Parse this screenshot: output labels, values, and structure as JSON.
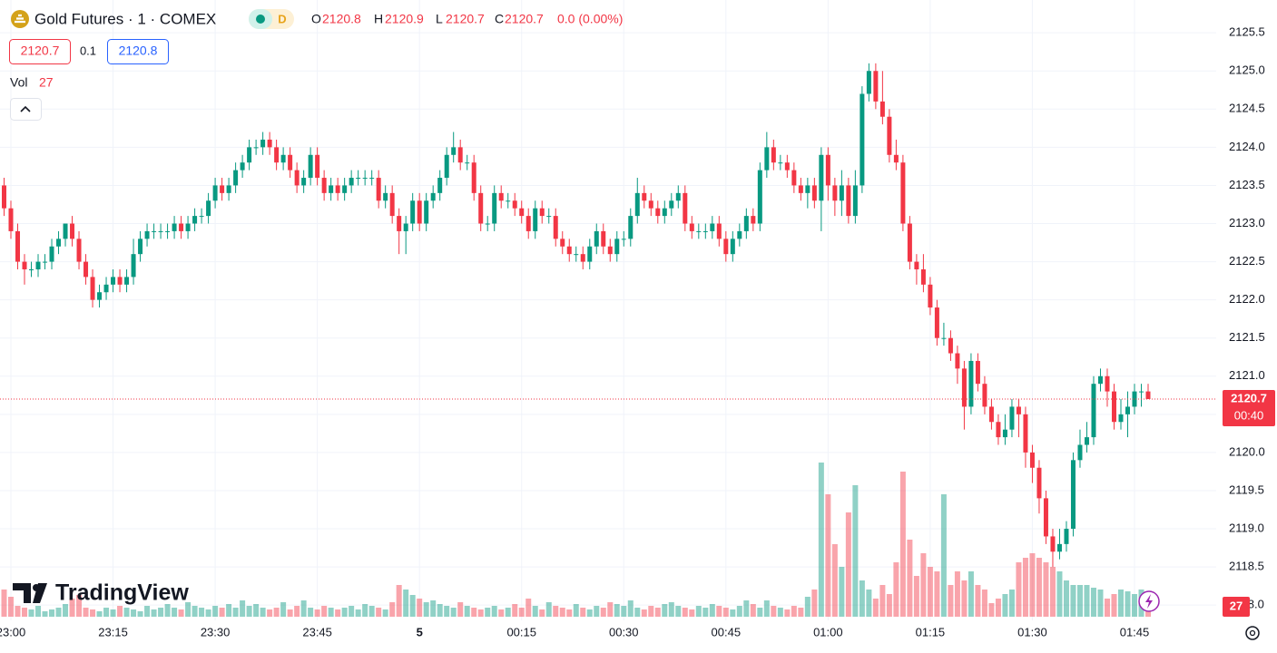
{
  "header": {
    "title": "Gold Futures · 1 · COMEX",
    "interval_badge": "D",
    "ohlc_labels": [
      "O",
      "H",
      "L",
      "C"
    ],
    "change": "0.0 (0.00%)",
    "bid": 2120.7,
    "spread": 0.1,
    "ask": 2120.8,
    "vol_label": "Vol",
    "logo": "TradingView",
    "countdown": "00:40"
  },
  "chart_data": {
    "type": "candlestick",
    "up_color": "#089981",
    "down_color": "#f23645",
    "grid": true,
    "ylim": [
      2117.8,
      2125.93
    ],
    "yticks": [
      {
        "value": 2118.0,
        "label": "2118.0"
      },
      2118.5,
      {
        "value": 2119.0,
        "label": "2119.0"
      },
      2119.5,
      {
        "value": 2120.0,
        "label": "2120.0"
      },
      2120.5,
      {
        "value": 2121.0,
        "label": "2121.0"
      },
      2121.5,
      {
        "value": 2122.0,
        "label": "2122.0"
      },
      2122.5,
      {
        "value": 2123.0,
        "label": "2123.0"
      },
      2123.5,
      {
        "value": 2124.0,
        "label": "2124.0"
      },
      2124.5,
      {
        "value": 2125.0,
        "label": "2125.0"
      },
      2125.5
    ],
    "xticks": [
      {
        "value": 1,
        "label": "23:00"
      },
      {
        "value": 16,
        "label": "23:15"
      },
      {
        "value": 31,
        "label": "23:30"
      },
      {
        "value": 46,
        "label": "23:45"
      },
      {
        "value": 61,
        "label": "5"
      },
      {
        "value": 76,
        "label": "00:15"
      },
      {
        "value": 91,
        "label": "00:30"
      },
      {
        "value": 106,
        "label": "00:45"
      },
      {
        "value": 121,
        "label": "01:00"
      },
      {
        "value": 136,
        "label": "01:15"
      },
      {
        "value": 151,
        "label": "01:30"
      },
      {
        "value": 166,
        "label": "01:45"
      }
    ],
    "ohlc": [
      [
        2123.5,
        2123.6,
        2123.1,
        2123.2
      ],
      [
        2123.2,
        2123.3,
        2122.8,
        2122.9
      ],
      [
        2122.9,
        2123.0,
        2122.4,
        2122.5
      ],
      [
        2122.5,
        2122.6,
        2122.2,
        2122.4
      ],
      [
        2122.4,
        2122.5,
        2122.3,
        2122.4
      ],
      [
        2122.4,
        2122.6,
        2122.3,
        2122.5
      ],
      [
        2122.5,
        2122.6,
        2122.4,
        2122.5
      ],
      [
        2122.5,
        2122.8,
        2122.4,
        2122.7
      ],
      [
        2122.7,
        2122.9,
        2122.6,
        2122.8
      ],
      [
        2122.8,
        2123.0,
        2122.7,
        2123.0
      ],
      [
        2123.0,
        2123.1,
        2122.7,
        2122.8
      ],
      [
        2122.8,
        2122.9,
        2122.4,
        2122.5
      ],
      [
        2122.5,
        2122.6,
        2122.2,
        2122.3
      ],
      [
        2122.3,
        2122.4,
        2121.9,
        2122.0
      ],
      [
        2122.0,
        2122.2,
        2121.9,
        2122.1
      ],
      [
        2122.1,
        2122.3,
        2122.0,
        2122.2
      ],
      [
        2122.2,
        2122.4,
        2122.1,
        2122.3
      ],
      [
        2122.3,
        2122.4,
        2122.1,
        2122.2
      ],
      [
        2122.2,
        2122.4,
        2122.1,
        2122.3
      ],
      [
        2122.3,
        2122.8,
        2122.2,
        2122.6
      ],
      [
        2122.6,
        2122.9,
        2122.5,
        2122.8
      ],
      [
        2122.8,
        2123.0,
        2122.7,
        2122.9
      ],
      [
        2122.9,
        2123.0,
        2122.8,
        2122.9
      ],
      [
        2122.9,
        2123.0,
        2122.8,
        2122.9
      ],
      [
        2122.9,
        2123.0,
        2122.8,
        2122.9
      ],
      [
        2122.9,
        2123.1,
        2122.8,
        2123.0
      ],
      [
        2123.0,
        2123.1,
        2122.8,
        2122.9
      ],
      [
        2122.9,
        2123.1,
        2122.8,
        2123.0
      ],
      [
        2123.0,
        2123.2,
        2122.9,
        2123.1
      ],
      [
        2123.1,
        2123.2,
        2123.0,
        2123.1
      ],
      [
        2123.1,
        2123.4,
        2123.0,
        2123.3
      ],
      [
        2123.3,
        2123.6,
        2123.2,
        2123.5
      ],
      [
        2123.5,
        2123.6,
        2123.3,
        2123.4
      ],
      [
        2123.4,
        2123.6,
        2123.3,
        2123.5
      ],
      [
        2123.5,
        2123.8,
        2123.4,
        2123.7
      ],
      [
        2123.7,
        2123.9,
        2123.6,
        2123.8
      ],
      [
        2123.8,
        2124.1,
        2123.7,
        2124.0
      ],
      [
        2124.0,
        2124.1,
        2123.9,
        2124.0
      ],
      [
        2124.0,
        2124.2,
        2123.9,
        2124.1
      ],
      [
        2124.1,
        2124.2,
        2123.9,
        2124.0
      ],
      [
        2124.0,
        2124.1,
        2123.7,
        2123.8
      ],
      [
        2123.8,
        2124.0,
        2123.7,
        2123.9
      ],
      [
        2123.9,
        2124.0,
        2123.6,
        2123.7
      ],
      [
        2123.7,
        2123.8,
        2123.4,
        2123.5
      ],
      [
        2123.5,
        2123.7,
        2123.4,
        2123.6
      ],
      [
        2123.6,
        2124.0,
        2123.5,
        2123.9
      ],
      [
        2123.9,
        2124.0,
        2123.5,
        2123.6
      ],
      [
        2123.6,
        2123.7,
        2123.3,
        2123.4
      ],
      [
        2123.4,
        2123.6,
        2123.3,
        2123.5
      ],
      [
        2123.5,
        2123.6,
        2123.3,
        2123.4
      ],
      [
        2123.4,
        2123.6,
        2123.3,
        2123.5
      ],
      [
        2123.5,
        2123.7,
        2123.4,
        2123.6
      ],
      [
        2123.6,
        2123.7,
        2123.5,
        2123.6
      ],
      [
        2123.6,
        2123.7,
        2123.5,
        2123.6
      ],
      [
        2123.6,
        2123.7,
        2123.5,
        2123.6
      ],
      [
        2123.6,
        2123.7,
        2123.2,
        2123.3
      ],
      [
        2123.3,
        2123.5,
        2123.2,
        2123.4
      ],
      [
        2123.4,
        2123.5,
        2123.0,
        2123.1
      ],
      [
        2123.1,
        2123.2,
        2122.6,
        2122.9
      ],
      [
        2122.9,
        2123.1,
        2122.6,
        2123.0
      ],
      [
        2123.0,
        2123.4,
        2122.9,
        2123.3
      ],
      [
        2123.3,
        2123.4,
        2122.9,
        2123.0
      ],
      [
        2123.0,
        2123.4,
        2122.9,
        2123.3
      ],
      [
        2123.3,
        2123.5,
        2123.2,
        2123.4
      ],
      [
        2123.4,
        2123.7,
        2123.3,
        2123.6
      ],
      [
        2123.6,
        2124.0,
        2123.5,
        2123.9
      ],
      [
        2123.9,
        2124.2,
        2123.8,
        2124.0
      ],
      [
        2124.0,
        2124.1,
        2123.7,
        2123.8
      ],
      [
        2123.8,
        2123.9,
        2123.7,
        2123.8
      ],
      [
        2123.8,
        2123.9,
        2123.3,
        2123.4
      ],
      [
        2123.4,
        2123.5,
        2122.9,
        2123.0
      ],
      [
        2123.0,
        2123.1,
        2122.9,
        2123.0
      ],
      [
        2123.0,
        2123.5,
        2122.9,
        2123.4
      ],
      [
        2123.4,
        2123.5,
        2123.2,
        2123.3
      ],
      [
        2123.3,
        2123.4,
        2123.2,
        2123.3
      ],
      [
        2123.3,
        2123.4,
        2123.1,
        2123.2
      ],
      [
        2123.2,
        2123.3,
        2123.0,
        2123.1
      ],
      [
        2123.1,
        2123.2,
        2122.8,
        2122.9
      ],
      [
        2122.9,
        2123.3,
        2122.8,
        2123.2
      ],
      [
        2123.2,
        2123.3,
        2123.0,
        2123.1
      ],
      [
        2123.1,
        2123.2,
        2123.0,
        2123.1
      ],
      [
        2123.1,
        2123.2,
        2122.7,
        2122.8
      ],
      [
        2122.8,
        2122.9,
        2122.6,
        2122.7
      ],
      [
        2122.7,
        2122.8,
        2122.5,
        2122.6
      ],
      [
        2122.6,
        2122.7,
        2122.5,
        2122.6
      ],
      [
        2122.6,
        2122.7,
        2122.4,
        2122.5
      ],
      [
        2122.5,
        2122.8,
        2122.4,
        2122.7
      ],
      [
        2122.7,
        2123.0,
        2122.6,
        2122.9
      ],
      [
        2122.9,
        2123.0,
        2122.6,
        2122.7
      ],
      [
        2122.7,
        2122.8,
        2122.5,
        2122.6
      ],
      [
        2122.6,
        2122.9,
        2122.5,
        2122.8
      ],
      [
        2122.8,
        2122.9,
        2122.7,
        2122.8
      ],
      [
        2122.8,
        2123.2,
        2122.7,
        2123.1
      ],
      [
        2123.1,
        2123.6,
        2123.0,
        2123.4
      ],
      [
        2123.4,
        2123.5,
        2123.2,
        2123.3
      ],
      [
        2123.3,
        2123.4,
        2123.1,
        2123.2
      ],
      [
        2123.2,
        2123.3,
        2123.0,
        2123.1
      ],
      [
        2123.1,
        2123.3,
        2123.0,
        2123.2
      ],
      [
        2123.2,
        2123.4,
        2123.1,
        2123.3
      ],
      [
        2123.3,
        2123.5,
        2123.2,
        2123.4
      ],
      [
        2123.4,
        2123.5,
        2122.9,
        2123.0
      ],
      [
        2123.0,
        2123.1,
        2122.8,
        2122.9
      ],
      [
        2122.9,
        2123.0,
        2122.8,
        2122.9
      ],
      [
        2122.9,
        2123.0,
        2122.8,
        2122.9
      ],
      [
        2122.9,
        2123.1,
        2122.8,
        2123.0
      ],
      [
        2123.0,
        2123.1,
        2122.7,
        2122.8
      ],
      [
        2122.8,
        2122.9,
        2122.5,
        2122.6
      ],
      [
        2122.6,
        2122.9,
        2122.5,
        2122.8
      ],
      [
        2122.8,
        2123.0,
        2122.7,
        2122.9
      ],
      [
        2122.9,
        2123.2,
        2122.8,
        2123.1
      ],
      [
        2123.1,
        2123.2,
        2122.9,
        2123.0
      ],
      [
        2123.0,
        2123.8,
        2122.9,
        2123.7
      ],
      [
        2123.7,
        2124.2,
        2123.6,
        2124.0
      ],
      [
        2124.0,
        2124.1,
        2123.7,
        2123.8
      ],
      [
        2123.8,
        2123.9,
        2123.7,
        2123.8
      ],
      [
        2123.8,
        2123.9,
        2123.6,
        2123.7
      ],
      [
        2123.7,
        2123.8,
        2123.4,
        2123.5
      ],
      [
        2123.5,
        2123.6,
        2123.3,
        2123.4
      ],
      [
        2123.4,
        2123.6,
        2123.2,
        2123.5
      ],
      [
        2123.5,
        2123.6,
        2123.2,
        2123.3
      ],
      [
        2123.3,
        2124.0,
        2122.9,
        2123.9
      ],
      [
        2123.9,
        2124.0,
        2123.3,
        2123.5
      ],
      [
        2123.5,
        2123.6,
        2123.1,
        2123.3
      ],
      [
        2123.3,
        2123.7,
        2123.1,
        2123.5
      ],
      [
        2123.5,
        2123.6,
        2123.0,
        2123.1
      ],
      [
        2123.1,
        2123.7,
        2123.0,
        2123.5
      ],
      [
        2123.5,
        2124.8,
        2123.4,
        2124.7
      ],
      [
        2124.7,
        2125.1,
        2124.6,
        2125.0
      ],
      [
        2125.0,
        2125.1,
        2124.5,
        2124.6
      ],
      [
        2124.6,
        2125.0,
        2124.3,
        2124.4
      ],
      [
        2124.4,
        2124.5,
        2123.8,
        2123.9
      ],
      [
        2123.9,
        2124.1,
        2123.7,
        2123.8
      ],
      [
        2123.8,
        2123.9,
        2122.9,
        2123.0
      ],
      [
        2123.0,
        2123.1,
        2122.4,
        2122.5
      ],
      [
        2122.5,
        2122.6,
        2122.2,
        2122.4
      ],
      [
        2122.4,
        2122.6,
        2122.1,
        2122.2
      ],
      [
        2122.2,
        2122.3,
        2121.8,
        2121.9
      ],
      [
        2121.9,
        2122.0,
        2121.4,
        2121.5
      ],
      [
        2121.5,
        2121.7,
        2121.4,
        2121.5
      ],
      [
        2121.5,
        2121.6,
        2121.2,
        2121.3
      ],
      [
        2121.3,
        2121.4,
        2120.9,
        2121.1
      ],
      [
        2121.1,
        2121.2,
        2120.3,
        2120.6
      ],
      [
        2120.6,
        2121.3,
        2120.5,
        2121.2
      ],
      [
        2121.2,
        2121.3,
        2120.8,
        2120.9
      ],
      [
        2120.9,
        2121.0,
        2120.5,
        2120.6
      ],
      [
        2120.6,
        2120.7,
        2120.3,
        2120.4
      ],
      [
        2120.4,
        2120.5,
        2120.1,
        2120.2
      ],
      [
        2120.2,
        2120.5,
        2120.1,
        2120.3
      ],
      [
        2120.3,
        2120.7,
        2120.2,
        2120.6
      ],
      [
        2120.6,
        2120.7,
        2120.2,
        2120.5
      ],
      [
        2120.5,
        2120.6,
        2119.8,
        2120.0
      ],
      [
        2120.0,
        2120.1,
        2119.6,
        2119.8
      ],
      [
        2119.8,
        2119.9,
        2119.2,
        2119.4
      ],
      [
        2119.4,
        2119.5,
        2118.8,
        2118.9
      ],
      [
        2118.9,
        2119.0,
        2118.5,
        2118.7
      ],
      [
        2118.7,
        2119.0,
        2118.6,
        2118.8
      ],
      [
        2118.8,
        2119.1,
        2118.7,
        2119.0
      ],
      [
        2119.0,
        2120.0,
        2118.9,
        2119.9
      ],
      [
        2119.9,
        2120.3,
        2119.8,
        2120.1
      ],
      [
        2120.1,
        2120.4,
        2120.0,
        2120.2
      ],
      [
        2120.2,
        2121.0,
        2120.1,
        2120.9
      ],
      [
        2120.9,
        2121.1,
        2120.8,
        2121.0
      ],
      [
        2121.0,
        2121.1,
        2120.6,
        2120.8
      ],
      [
        2120.8,
        2120.9,
        2120.3,
        2120.4
      ],
      [
        2120.4,
        2120.7,
        2120.3,
        2120.5
      ],
      [
        2120.5,
        2120.8,
        2120.2,
        2120.6
      ],
      [
        2120.6,
        2120.9,
        2120.5,
        2120.8
      ],
      [
        2120.8,
        2120.9,
        2120.6,
        2120.8
      ],
      [
        2120.8,
        2120.9,
        2120.7,
        2120.7
      ]
    ],
    "volume": [
      30,
      22,
      12,
      10,
      8,
      12,
      6,
      8,
      10,
      14,
      20,
      24,
      10,
      8,
      6,
      10,
      8,
      12,
      10,
      8,
      6,
      12,
      8,
      10,
      14,
      10,
      8,
      16,
      12,
      10,
      8,
      12,
      10,
      14,
      10,
      18,
      12,
      14,
      10,
      8,
      10,
      16,
      8,
      12,
      18,
      10,
      8,
      12,
      10,
      8,
      10,
      12,
      8,
      14,
      12,
      10,
      8,
      16,
      35,
      30,
      24,
      20,
      16,
      18,
      14,
      12,
      10,
      16,
      12,
      10,
      8,
      10,
      12,
      8,
      10,
      14,
      10,
      20,
      12,
      8,
      16,
      12,
      10,
      8,
      14,
      10,
      8,
      12,
      10,
      16,
      14,
      12,
      18,
      10,
      8,
      12,
      10,
      14,
      16,
      12,
      10,
      8,
      12,
      10,
      14,
      12,
      10,
      8,
      12,
      18,
      14,
      10,
      18,
      12,
      10,
      8,
      12,
      10,
      22,
      30,
      170,
      135,
      80,
      55,
      115,
      145,
      40,
      30,
      20,
      35,
      25,
      60,
      160,
      85,
      45,
      70,
      55,
      50,
      135,
      35,
      50,
      40,
      50,
      35,
      30,
      15,
      20,
      25,
      30,
      60,
      65,
      70,
      65,
      60,
      55,
      50,
      40,
      35,
      35,
      35,
      32,
      30,
      20,
      25,
      30,
      28,
      25,
      30,
      27
    ]
  }
}
